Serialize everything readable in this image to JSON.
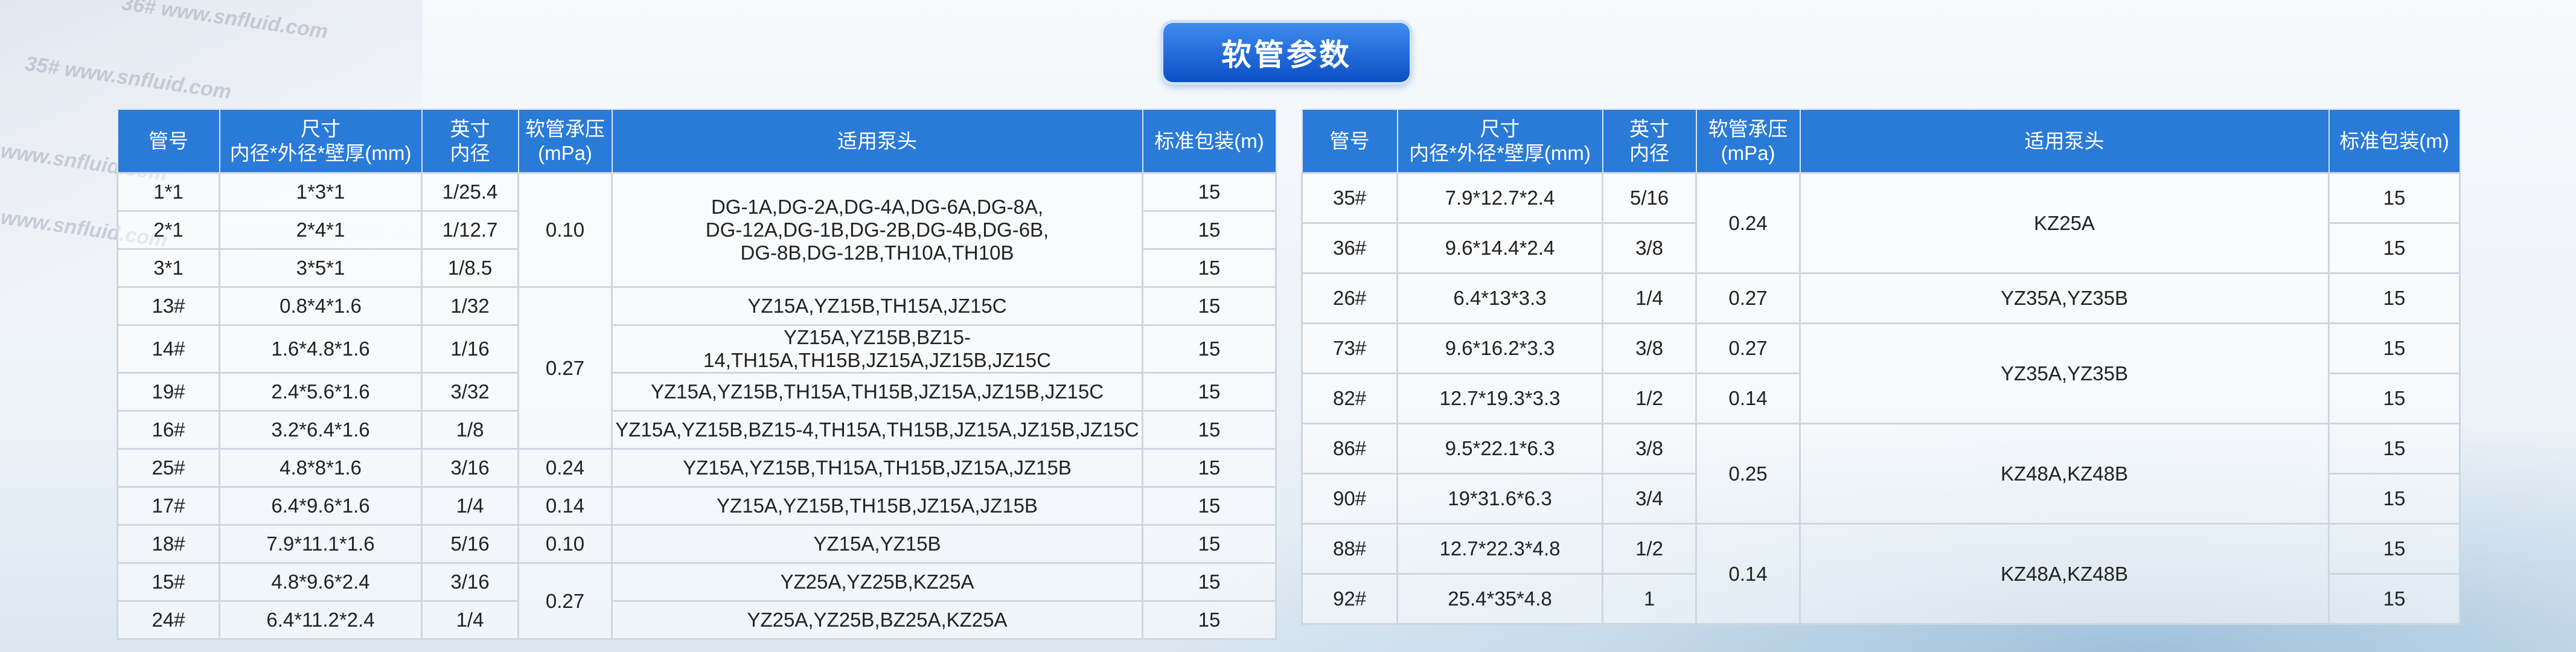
{
  "title": "软管参数",
  "watermarks": [
    "36#  www.snfluid.com",
    "35#  www.snfluid.com",
    "www.snfluid.com",
    "www.snfluid.com"
  ],
  "headers": [
    "管号",
    "尺寸\n内径*外径*壁厚(mm)",
    "英寸\n内径",
    "软管承压\n(mPa)",
    "适用泵头",
    "标准包装(m)"
  ],
  "left_table": {
    "rows": [
      {
        "no": "1*1",
        "size": "1*3*1",
        "inch": "1/25.4",
        "package": "15"
      },
      {
        "no": "2*1",
        "size": "2*4*1",
        "inch": "1/12.7",
        "package": "15"
      },
      {
        "no": "3*1",
        "size": "3*5*1",
        "inch": "1/8.5",
        "package": "15"
      },
      {
        "no": "13#",
        "size": "0.8*4*1.6",
        "inch": "1/32",
        "package": "15"
      },
      {
        "no": "14#",
        "size": "1.6*4.8*1.6",
        "inch": "1/16",
        "package": "15"
      },
      {
        "no": "19#",
        "size": "2.4*5.6*1.6",
        "inch": "3/32",
        "package": "15"
      },
      {
        "no": "16#",
        "size": "3.2*6.4*1.6",
        "inch": "1/8",
        "package": "15"
      },
      {
        "no": "25#",
        "size": "4.8*8*1.6",
        "inch": "3/16",
        "package": "15"
      },
      {
        "no": "17#",
        "size": "6.4*9.6*1.6",
        "inch": "1/4",
        "package": "15"
      },
      {
        "no": "18#",
        "size": "7.9*11.1*1.6",
        "inch": "5/16",
        "package": "15"
      },
      {
        "no": "15#",
        "size": "4.8*9.6*2.4",
        "inch": "3/16",
        "package": "15"
      },
      {
        "no": "24#",
        "size": "6.4*11.2*2.4",
        "inch": "1/4",
        "package": "15"
      }
    ],
    "pressure_groups": [
      {
        "value": "0.10",
        "rows": 3
      },
      {
        "value": "0.27",
        "rows": 4
      },
      {
        "value": "0.24",
        "rows": 1
      },
      {
        "value": "0.14",
        "rows": 1
      },
      {
        "value": "0.10",
        "rows": 1
      },
      {
        "value": "0.27",
        "rows": 2
      }
    ],
    "pump_groups": [
      {
        "value": "DG-1A,DG-2A,DG-4A,DG-6A,DG-8A,\nDG-12A,DG-1B,DG-2B,DG-4B,DG-6B,\nDG-8B,DG-12B,TH10A,TH10B",
        "rows": 3
      },
      {
        "value": "YZ15A,YZ15B,TH15A,JZ15C",
        "rows": 1
      },
      {
        "value": "YZ15A,YZ15B,BZ15-14,TH15A,TH15B,JZ15A,JZ15B,JZ15C",
        "rows": 1
      },
      {
        "value": "YZ15A,YZ15B,TH15A,TH15B,JZ15A,JZ15B,JZ15C",
        "rows": 1
      },
      {
        "value": "YZ15A,YZ15B,BZ15-4,TH15A,TH15B,JZ15A,JZ15B,JZ15C",
        "rows": 1
      },
      {
        "value": "YZ15A,YZ15B,TH15A,TH15B,JZ15A,JZ15B",
        "rows": 1
      },
      {
        "value": "YZ15A,YZ15B,TH15B,JZ15A,JZ15B",
        "rows": 1
      },
      {
        "value": "YZ15A,YZ15B",
        "rows": 1
      },
      {
        "value": "YZ25A,YZ25B,KZ25A",
        "rows": 1
      },
      {
        "value": "YZ25A,YZ25B,BZ25A,KZ25A",
        "rows": 1
      }
    ]
  },
  "right_table": {
    "rows": [
      {
        "no": "35#",
        "size": "7.9*12.7*2.4",
        "inch": "5/16",
        "package": "15"
      },
      {
        "no": "36#",
        "size": "9.6*14.4*2.4",
        "inch": "3/8",
        "package": "15"
      },
      {
        "no": "26#",
        "size": "6.4*13*3.3",
        "inch": "1/4",
        "package": "15"
      },
      {
        "no": "73#",
        "size": "9.6*16.2*3.3",
        "inch": "3/8",
        "package": "15"
      },
      {
        "no": "82#",
        "size": "12.7*19.3*3.3",
        "inch": "1/2",
        "package": "15"
      },
      {
        "no": "86#",
        "size": "9.5*22.1*6.3",
        "inch": "3/8",
        "package": "15"
      },
      {
        "no": "90#",
        "size": "19*31.6*6.3",
        "inch": "3/4",
        "package": "15"
      },
      {
        "no": "88#",
        "size": "12.7*22.3*4.8",
        "inch": "1/2",
        "package": "15"
      },
      {
        "no": "92#",
        "size": "25.4*35*4.8",
        "inch": "1",
        "package": "15"
      }
    ],
    "pressure_groups": [
      {
        "value": "0.24",
        "rows": 2
      },
      {
        "value": "0.27",
        "rows": 1
      },
      {
        "value": "0.27",
        "rows": 1
      },
      {
        "value": "0.14",
        "rows": 1
      },
      {
        "value": "0.25",
        "rows": 2
      },
      {
        "value": "0.14",
        "rows": 2
      }
    ],
    "pump_groups": [
      {
        "value": "KZ25A",
        "rows": 2
      },
      {
        "value": "YZ35A,YZ35B",
        "rows": 1
      },
      {
        "value": "YZ35A,YZ35B",
        "rows": 2
      },
      {
        "value": "KZ48A,KZ48B",
        "rows": 2
      },
      {
        "value": "KZ48A,KZ48B",
        "rows": 2
      }
    ]
  },
  "colors": {
    "header": "#2a7ad8",
    "title_button": "#1f6be0"
  }
}
